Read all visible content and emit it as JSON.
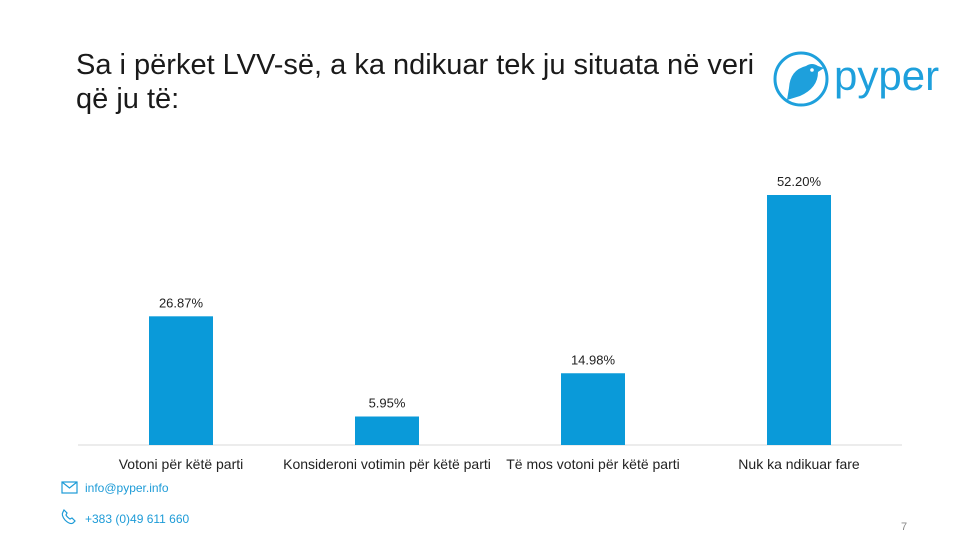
{
  "chart_data": {
    "type": "bar",
    "title": "Sa i përket LVV-së, a ka ndikuar tek ju situata në veri që ju të:",
    "categories": [
      "Votoni për këtë parti",
      "Konsideroni votimin për këtë parti",
      "Të mos votoni për këtë parti",
      "Nuk ka ndikuar fare"
    ],
    "values": [
      26.87,
      5.95,
      14.98,
      52.2
    ],
    "value_labels": [
      "26.87%",
      "5.95%",
      "14.98%",
      "52.20%"
    ],
    "color": "#0a9ad9"
  },
  "logo": "pyper",
  "footer": {
    "email": "info@pyper.info",
    "phone": "+383 (0)49 611 660",
    "page_number": "7"
  }
}
